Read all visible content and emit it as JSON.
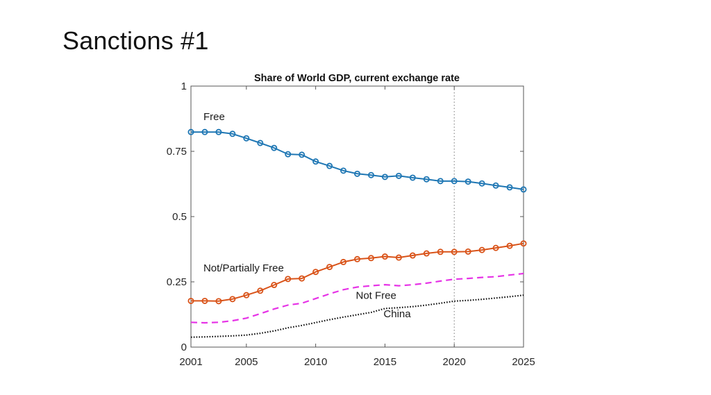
{
  "slide": {
    "title": "Sanctions #1"
  },
  "chart_data": {
    "type": "line",
    "title": "Share of World GDP, current exchange rate",
    "xlabel": "",
    "ylabel": "",
    "xlim": [
      2001,
      2025
    ],
    "ylim": [
      0,
      1
    ],
    "x_ticks": [
      "2001",
      "2005",
      "2010",
      "2015",
      "2020",
      "2025"
    ],
    "y_ticks": [
      "0",
      "0.25",
      "0.5",
      "0.75",
      "1"
    ],
    "grid": false,
    "vertical_reference_line": 2020,
    "x": [
      2001,
      2002,
      2003,
      2004,
      2005,
      2006,
      2007,
      2008,
      2009,
      2010,
      2011,
      2012,
      2013,
      2014,
      2015,
      2016,
      2017,
      2018,
      2019,
      2020,
      2021,
      2022,
      2023,
      2024,
      2025
    ],
    "series": [
      {
        "name": "Free",
        "color": "#1f77b4",
        "style": "solid-circle-markers",
        "values": [
          0.824,
          0.824,
          0.824,
          0.817,
          0.8,
          0.782,
          0.763,
          0.739,
          0.737,
          0.711,
          0.694,
          0.676,
          0.664,
          0.659,
          0.652,
          0.656,
          0.649,
          0.643,
          0.636,
          0.636,
          0.634,
          0.627,
          0.619,
          0.612,
          0.604
        ]
      },
      {
        "name": "Not/Partially Free",
        "color": "#d95319",
        "style": "solid-circle-markers",
        "values": [
          0.177,
          0.177,
          0.176,
          0.184,
          0.199,
          0.216,
          0.238,
          0.261,
          0.263,
          0.288,
          0.307,
          0.326,
          0.337,
          0.341,
          0.347,
          0.343,
          0.351,
          0.359,
          0.365,
          0.365,
          0.366,
          0.372,
          0.38,
          0.388,
          0.397
        ]
      },
      {
        "name": "Not Free",
        "color": "#e633e6",
        "style": "dashed",
        "values": [
          0.095,
          0.093,
          0.095,
          0.101,
          0.111,
          0.128,
          0.146,
          0.161,
          0.168,
          0.186,
          0.204,
          0.22,
          0.23,
          0.235,
          0.239,
          0.235,
          0.239,
          0.245,
          0.253,
          0.26,
          0.263,
          0.267,
          0.27,
          0.276,
          0.282
        ]
      },
      {
        "name": "China",
        "color": "#111111",
        "style": "dotted",
        "values": [
          0.038,
          0.039,
          0.041,
          0.043,
          0.046,
          0.053,
          0.062,
          0.074,
          0.083,
          0.094,
          0.105,
          0.115,
          0.124,
          0.133,
          0.148,
          0.151,
          0.155,
          0.161,
          0.168,
          0.176,
          0.179,
          0.183,
          0.188,
          0.193,
          0.199
        ]
      }
    ],
    "annotations": [
      {
        "text": "Free",
        "series": "Free",
        "x": 2002,
        "y": 0.87
      },
      {
        "text": "Not/Partially Free",
        "series": "Not/Partially Free",
        "x": 2002,
        "y": 0.29
      },
      {
        "text": "Not Free",
        "series": "Not Free",
        "x": 2013,
        "y": 0.185
      },
      {
        "text": "China",
        "series": "China",
        "x": 2015,
        "y": 0.115
      }
    ]
  }
}
